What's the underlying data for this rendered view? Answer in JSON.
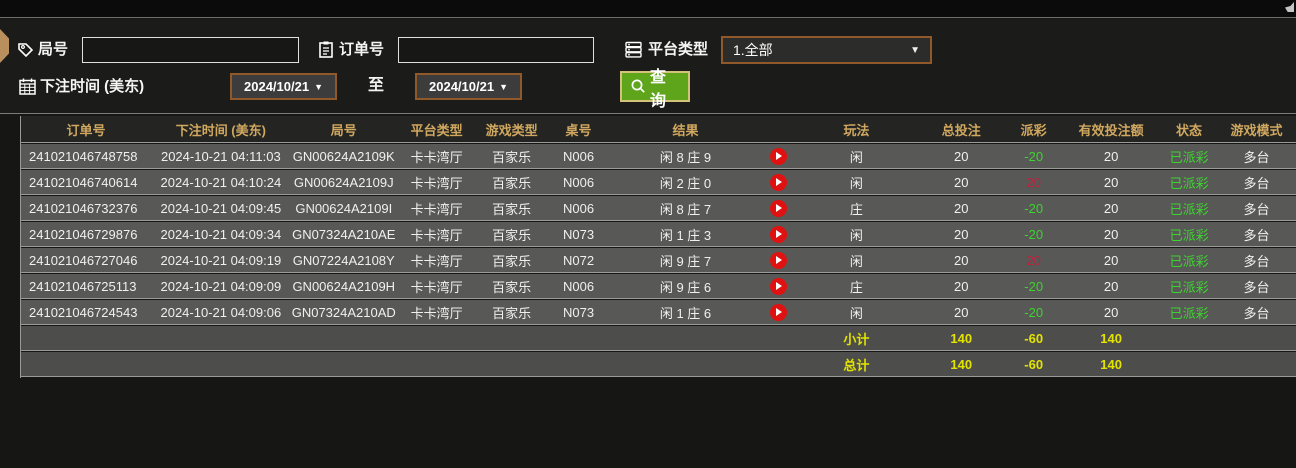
{
  "filter": {
    "round_label": "局号",
    "round_value": "",
    "order_label": "订单号",
    "order_value": "",
    "platform_label": "平台类型",
    "platform_value": "1.全部",
    "bet_time_label": "下注时间 (美东)",
    "date_from": "2024/10/21",
    "to_label": "至",
    "date_to": "2024/10/21",
    "query_label": "查询"
  },
  "table": {
    "headers": {
      "order_id": "订单号",
      "bet_time": "下注时间 (美东)",
      "round_id": "局号",
      "platform": "平台类型",
      "game_type": "游戏类型",
      "table_no": "桌号",
      "result": "结果",
      "video": "",
      "play": "玩法",
      "total_bet": "总投注",
      "payout": "派彩",
      "valid_bet": "有效投注额",
      "status": "状态",
      "game_mode": "游戏模式"
    },
    "rows": [
      {
        "order_id": "241021046748758",
        "bet_time": "2024-10-21 04:11:03",
        "round_id": "GN00624A2109K",
        "platform": "卡卡湾厅",
        "game_type": "百家乐",
        "table_no": "N006",
        "result": "闲 8 庄 9",
        "play": "闲",
        "total_bet": "20",
        "payout": "-20",
        "valid_bet": "20",
        "status": "已派彩",
        "game_mode": "多台"
      },
      {
        "order_id": "241021046740614",
        "bet_time": "2024-10-21 04:10:24",
        "round_id": "GN00624A2109J",
        "platform": "卡卡湾厅",
        "game_type": "百家乐",
        "table_no": "N006",
        "result": "闲 2 庄 0",
        "play": "闲",
        "total_bet": "20",
        "payout": "20",
        "valid_bet": "20",
        "status": "已派彩",
        "game_mode": "多台"
      },
      {
        "order_id": "241021046732376",
        "bet_time": "2024-10-21 04:09:45",
        "round_id": "GN00624A2109I",
        "platform": "卡卡湾厅",
        "game_type": "百家乐",
        "table_no": "N006",
        "result": "闲 8 庄 7",
        "play": "庄",
        "total_bet": "20",
        "payout": "-20",
        "valid_bet": "20",
        "status": "已派彩",
        "game_mode": "多台"
      },
      {
        "order_id": "241021046729876",
        "bet_time": "2024-10-21 04:09:34",
        "round_id": "GN07324A210AE",
        "platform": "卡卡湾厅",
        "game_type": "百家乐",
        "table_no": "N073",
        "result": "闲 1 庄 3",
        "play": "闲",
        "total_bet": "20",
        "payout": "-20",
        "valid_bet": "20",
        "status": "已派彩",
        "game_mode": "多台"
      },
      {
        "order_id": "241021046727046",
        "bet_time": "2024-10-21 04:09:19",
        "round_id": "GN07224A2108Y",
        "platform": "卡卡湾厅",
        "game_type": "百家乐",
        "table_no": "N072",
        "result": "闲 9 庄 7",
        "play": "闲",
        "total_bet": "20",
        "payout": "20",
        "valid_bet": "20",
        "status": "已派彩",
        "game_mode": "多台"
      },
      {
        "order_id": "241021046725113",
        "bet_time": "2024-10-21 04:09:09",
        "round_id": "GN00624A2109H",
        "platform": "卡卡湾厅",
        "game_type": "百家乐",
        "table_no": "N006",
        "result": "闲 9 庄 6",
        "play": "庄",
        "total_bet": "20",
        "payout": "-20",
        "valid_bet": "20",
        "status": "已派彩",
        "game_mode": "多台"
      },
      {
        "order_id": "241021046724543",
        "bet_time": "2024-10-21 04:09:06",
        "round_id": "GN07324A210AD",
        "platform": "卡卡湾厅",
        "game_type": "百家乐",
        "table_no": "N073",
        "result": "闲 1 庄 6",
        "play": "闲",
        "total_bet": "20",
        "payout": "-20",
        "valid_bet": "20",
        "status": "已派彩",
        "game_mode": "多台"
      }
    ],
    "subtotal": {
      "label": "小计",
      "total_bet": "140",
      "payout": "-60",
      "valid_bet": "140"
    },
    "total": {
      "label": "总计",
      "total_bet": "140",
      "payout": "-60",
      "valid_bet": "140"
    }
  },
  "colors": {
    "header_gold": "#d0a85f",
    "win_red": "#c3203c",
    "loss_green": "#3ed331",
    "totals_yellow": "#e3e300",
    "brown_border": "#91582a",
    "button_green": "#5ea51c",
    "play_red": "#e01111"
  }
}
